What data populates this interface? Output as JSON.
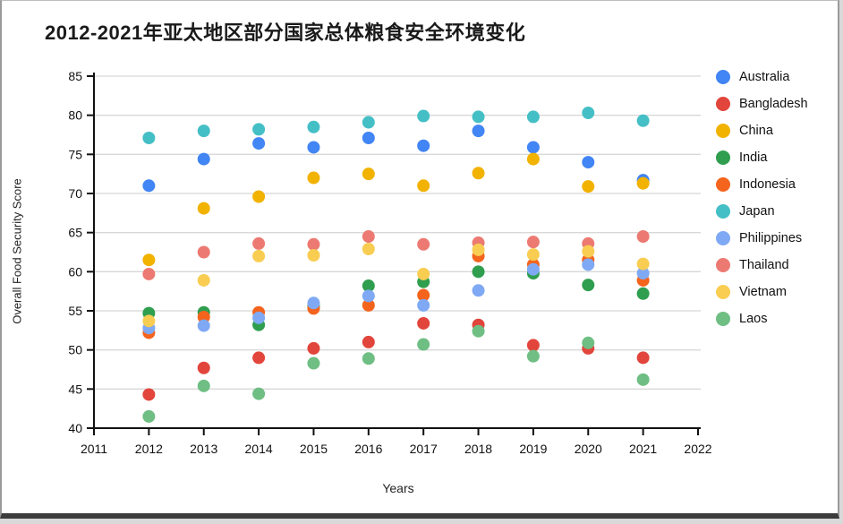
{
  "title": "2012-2021年亚太地区部分国家总体粮食安全环境变化",
  "chart_data": {
    "type": "scatter",
    "title": "2012-2021年亚太地区部分国家总体粮食安全环境变化",
    "xlabel": "Years",
    "ylabel": "Overall Food Security Score",
    "xlim": [
      2011,
      2022
    ],
    "ylim": [
      40,
      85
    ],
    "x_ticks": [
      2011,
      2012,
      2013,
      2014,
      2015,
      2016,
      2017,
      2018,
      2019,
      2020,
      2021,
      2022
    ],
    "y_ticks": [
      40,
      45,
      50,
      55,
      60,
      65,
      70,
      75,
      80,
      85
    ],
    "grid": "horizontal",
    "legend_position": "right",
    "categories": [
      2012,
      2013,
      2014,
      2015,
      2016,
      2017,
      2018,
      2019,
      2020,
      2021
    ],
    "series": [
      {
        "name": "Australia",
        "color": "#4285F4",
        "values": [
          71.0,
          74.4,
          76.4,
          75.9,
          77.1,
          76.1,
          78.0,
          75.9,
          74.0,
          71.7
        ]
      },
      {
        "name": "Bangladesh",
        "color": "#E2453C",
        "values": [
          44.3,
          47.7,
          49.0,
          50.2,
          51.0,
          53.4,
          53.2,
          50.6,
          50.2,
          49.0
        ]
      },
      {
        "name": "China",
        "color": "#F2B200",
        "values": [
          61.5,
          68.1,
          69.6,
          72.0,
          72.5,
          71.0,
          72.6,
          74.4,
          70.9,
          71.3
        ]
      },
      {
        "name": "India",
        "color": "#2F9E4F",
        "values": [
          54.7,
          54.8,
          53.2,
          55.6,
          58.2,
          58.7,
          60.0,
          59.8,
          58.3,
          57.2
        ]
      },
      {
        "name": "Indonesia",
        "color": "#F4641D",
        "values": [
          52.2,
          54.2,
          54.8,
          55.3,
          55.7,
          57.0,
          62.0,
          60.9,
          61.5,
          58.9
        ]
      },
      {
        "name": "Japan",
        "color": "#45BFC6",
        "values": [
          77.1,
          78.0,
          78.2,
          78.5,
          79.1,
          79.9,
          79.8,
          79.8,
          80.3,
          79.3
        ]
      },
      {
        "name": "Philippines",
        "color": "#7FA9F4",
        "values": [
          52.8,
          53.1,
          54.1,
          56.0,
          56.9,
          55.7,
          57.6,
          60.3,
          60.9,
          59.8
        ]
      },
      {
        "name": "Thailand",
        "color": "#EC7A72",
        "values": [
          59.7,
          62.5,
          63.6,
          63.5,
          64.5,
          63.5,
          63.7,
          63.8,
          63.6,
          64.5
        ]
      },
      {
        "name": "Vietnam",
        "color": "#F8CD52",
        "values": [
          53.7,
          58.9,
          62.0,
          62.1,
          62.9,
          59.7,
          62.8,
          62.2,
          62.6,
          61.0
        ]
      },
      {
        "name": "Laos",
        "color": "#6FBE83",
        "values": [
          41.5,
          45.4,
          44.4,
          48.3,
          48.9,
          50.7,
          52.4,
          49.2,
          50.9,
          46.2
        ]
      }
    ]
  }
}
